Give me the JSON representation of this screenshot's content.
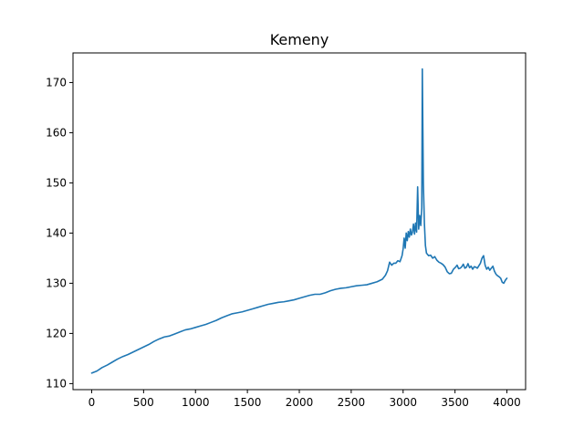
{
  "chart_data": {
    "type": "line",
    "title": "Kemeny",
    "xlabel": "",
    "ylabel": "",
    "xlim": [
      -180,
      4180
    ],
    "ylim": [
      108.8,
      175.9
    ],
    "grid": false,
    "x_ticks": [
      0,
      500,
      1000,
      1500,
      2000,
      2500,
      3000,
      3500,
      4000
    ],
    "y_ticks": [
      110,
      120,
      130,
      140,
      150,
      160,
      170
    ],
    "series": [
      {
        "color": "#1f77b4",
        "points": [
          [
            0,
            112.1
          ],
          [
            50,
            112.5
          ],
          [
            100,
            113.2
          ],
          [
            150,
            113.7
          ],
          [
            200,
            114.3
          ],
          [
            250,
            114.9
          ],
          [
            300,
            115.4
          ],
          [
            350,
            115.8
          ],
          [
            400,
            116.3
          ],
          [
            450,
            116.8
          ],
          [
            500,
            117.3
          ],
          [
            550,
            117.8
          ],
          [
            600,
            118.4
          ],
          [
            650,
            118.9
          ],
          [
            700,
            119.3
          ],
          [
            750,
            119.5
          ],
          [
            800,
            119.9
          ],
          [
            850,
            120.3
          ],
          [
            900,
            120.7
          ],
          [
            950,
            120.9
          ],
          [
            1000,
            121.2
          ],
          [
            1050,
            121.5
          ],
          [
            1100,
            121.8
          ],
          [
            1150,
            122.2
          ],
          [
            1200,
            122.6
          ],
          [
            1250,
            123.1
          ],
          [
            1300,
            123.5
          ],
          [
            1350,
            123.9
          ],
          [
            1400,
            124.1
          ],
          [
            1450,
            124.3
          ],
          [
            1500,
            124.6
          ],
          [
            1550,
            124.9
          ],
          [
            1600,
            125.2
          ],
          [
            1650,
            125.5
          ],
          [
            1700,
            125.8
          ],
          [
            1750,
            126.0
          ],
          [
            1800,
            126.2
          ],
          [
            1850,
            126.3
          ],
          [
            1900,
            126.5
          ],
          [
            1950,
            126.7
          ],
          [
            2000,
            127.0
          ],
          [
            2050,
            127.3
          ],
          [
            2100,
            127.6
          ],
          [
            2150,
            127.8
          ],
          [
            2200,
            127.8
          ],
          [
            2250,
            128.1
          ],
          [
            2300,
            128.5
          ],
          [
            2350,
            128.8
          ],
          [
            2400,
            129.0
          ],
          [
            2450,
            129.1
          ],
          [
            2500,
            129.3
          ],
          [
            2550,
            129.5
          ],
          [
            2600,
            129.6
          ],
          [
            2650,
            129.7
          ],
          [
            2700,
            130.0
          ],
          [
            2750,
            130.3
          ],
          [
            2800,
            130.8
          ],
          [
            2830,
            131.6
          ],
          [
            2850,
            132.5
          ],
          [
            2870,
            134.2
          ],
          [
            2890,
            133.6
          ],
          [
            2910,
            134.0
          ],
          [
            2930,
            134.0
          ],
          [
            2950,
            134.5
          ],
          [
            2970,
            134.3
          ],
          [
            2990,
            135.5
          ],
          [
            3000,
            136.8
          ],
          [
            3010,
            139.0
          ],
          [
            3020,
            137.0
          ],
          [
            3030,
            140.0
          ],
          [
            3040,
            138.5
          ],
          [
            3050,
            140.3
          ],
          [
            3060,
            139.2
          ],
          [
            3070,
            140.8
          ],
          [
            3080,
            139.6
          ],
          [
            3090,
            140.2
          ],
          [
            3100,
            141.8
          ],
          [
            3110,
            139.8
          ],
          [
            3120,
            142.0
          ],
          [
            3130,
            140.2
          ],
          [
            3140,
            149.2
          ],
          [
            3150,
            140.8
          ],
          [
            3160,
            143.5
          ],
          [
            3170,
            141.5
          ],
          [
            3180,
            145.0
          ],
          [
            3185,
            172.7
          ],
          [
            3195,
            150.0
          ],
          [
            3205,
            142.0
          ],
          [
            3215,
            137.5
          ],
          [
            3225,
            136.0
          ],
          [
            3245,
            135.5
          ],
          [
            3265,
            135.6
          ],
          [
            3285,
            135.0
          ],
          [
            3305,
            135.3
          ],
          [
            3325,
            134.6
          ],
          [
            3345,
            134.2
          ],
          [
            3365,
            134.0
          ],
          [
            3385,
            133.7
          ],
          [
            3405,
            133.2
          ],
          [
            3425,
            132.3
          ],
          [
            3445,
            131.9
          ],
          [
            3465,
            132.0
          ],
          [
            3485,
            132.8
          ],
          [
            3505,
            133.2
          ],
          [
            3520,
            133.6
          ],
          [
            3535,
            132.9
          ],
          [
            3550,
            133.0
          ],
          [
            3565,
            133.3
          ],
          [
            3580,
            133.8
          ],
          [
            3595,
            133.0
          ],
          [
            3610,
            133.2
          ],
          [
            3625,
            133.9
          ],
          [
            3640,
            133.1
          ],
          [
            3655,
            133.4
          ],
          [
            3670,
            132.8
          ],
          [
            3685,
            133.3
          ],
          [
            3700,
            133.2
          ],
          [
            3715,
            133.0
          ],
          [
            3730,
            133.5
          ],
          [
            3745,
            134.0
          ],
          [
            3760,
            135.0
          ],
          [
            3775,
            135.5
          ],
          [
            3790,
            133.6
          ],
          [
            3805,
            132.8
          ],
          [
            3820,
            133.2
          ],
          [
            3835,
            132.6
          ],
          [
            3850,
            133.0
          ],
          [
            3865,
            133.4
          ],
          [
            3880,
            132.4
          ],
          [
            3895,
            131.8
          ],
          [
            3910,
            131.5
          ],
          [
            3925,
            131.3
          ],
          [
            3940,
            131.0
          ],
          [
            3955,
            130.2
          ],
          [
            3970,
            130.0
          ],
          [
            3985,
            130.6
          ],
          [
            4000,
            131.0
          ]
        ]
      }
    ]
  }
}
